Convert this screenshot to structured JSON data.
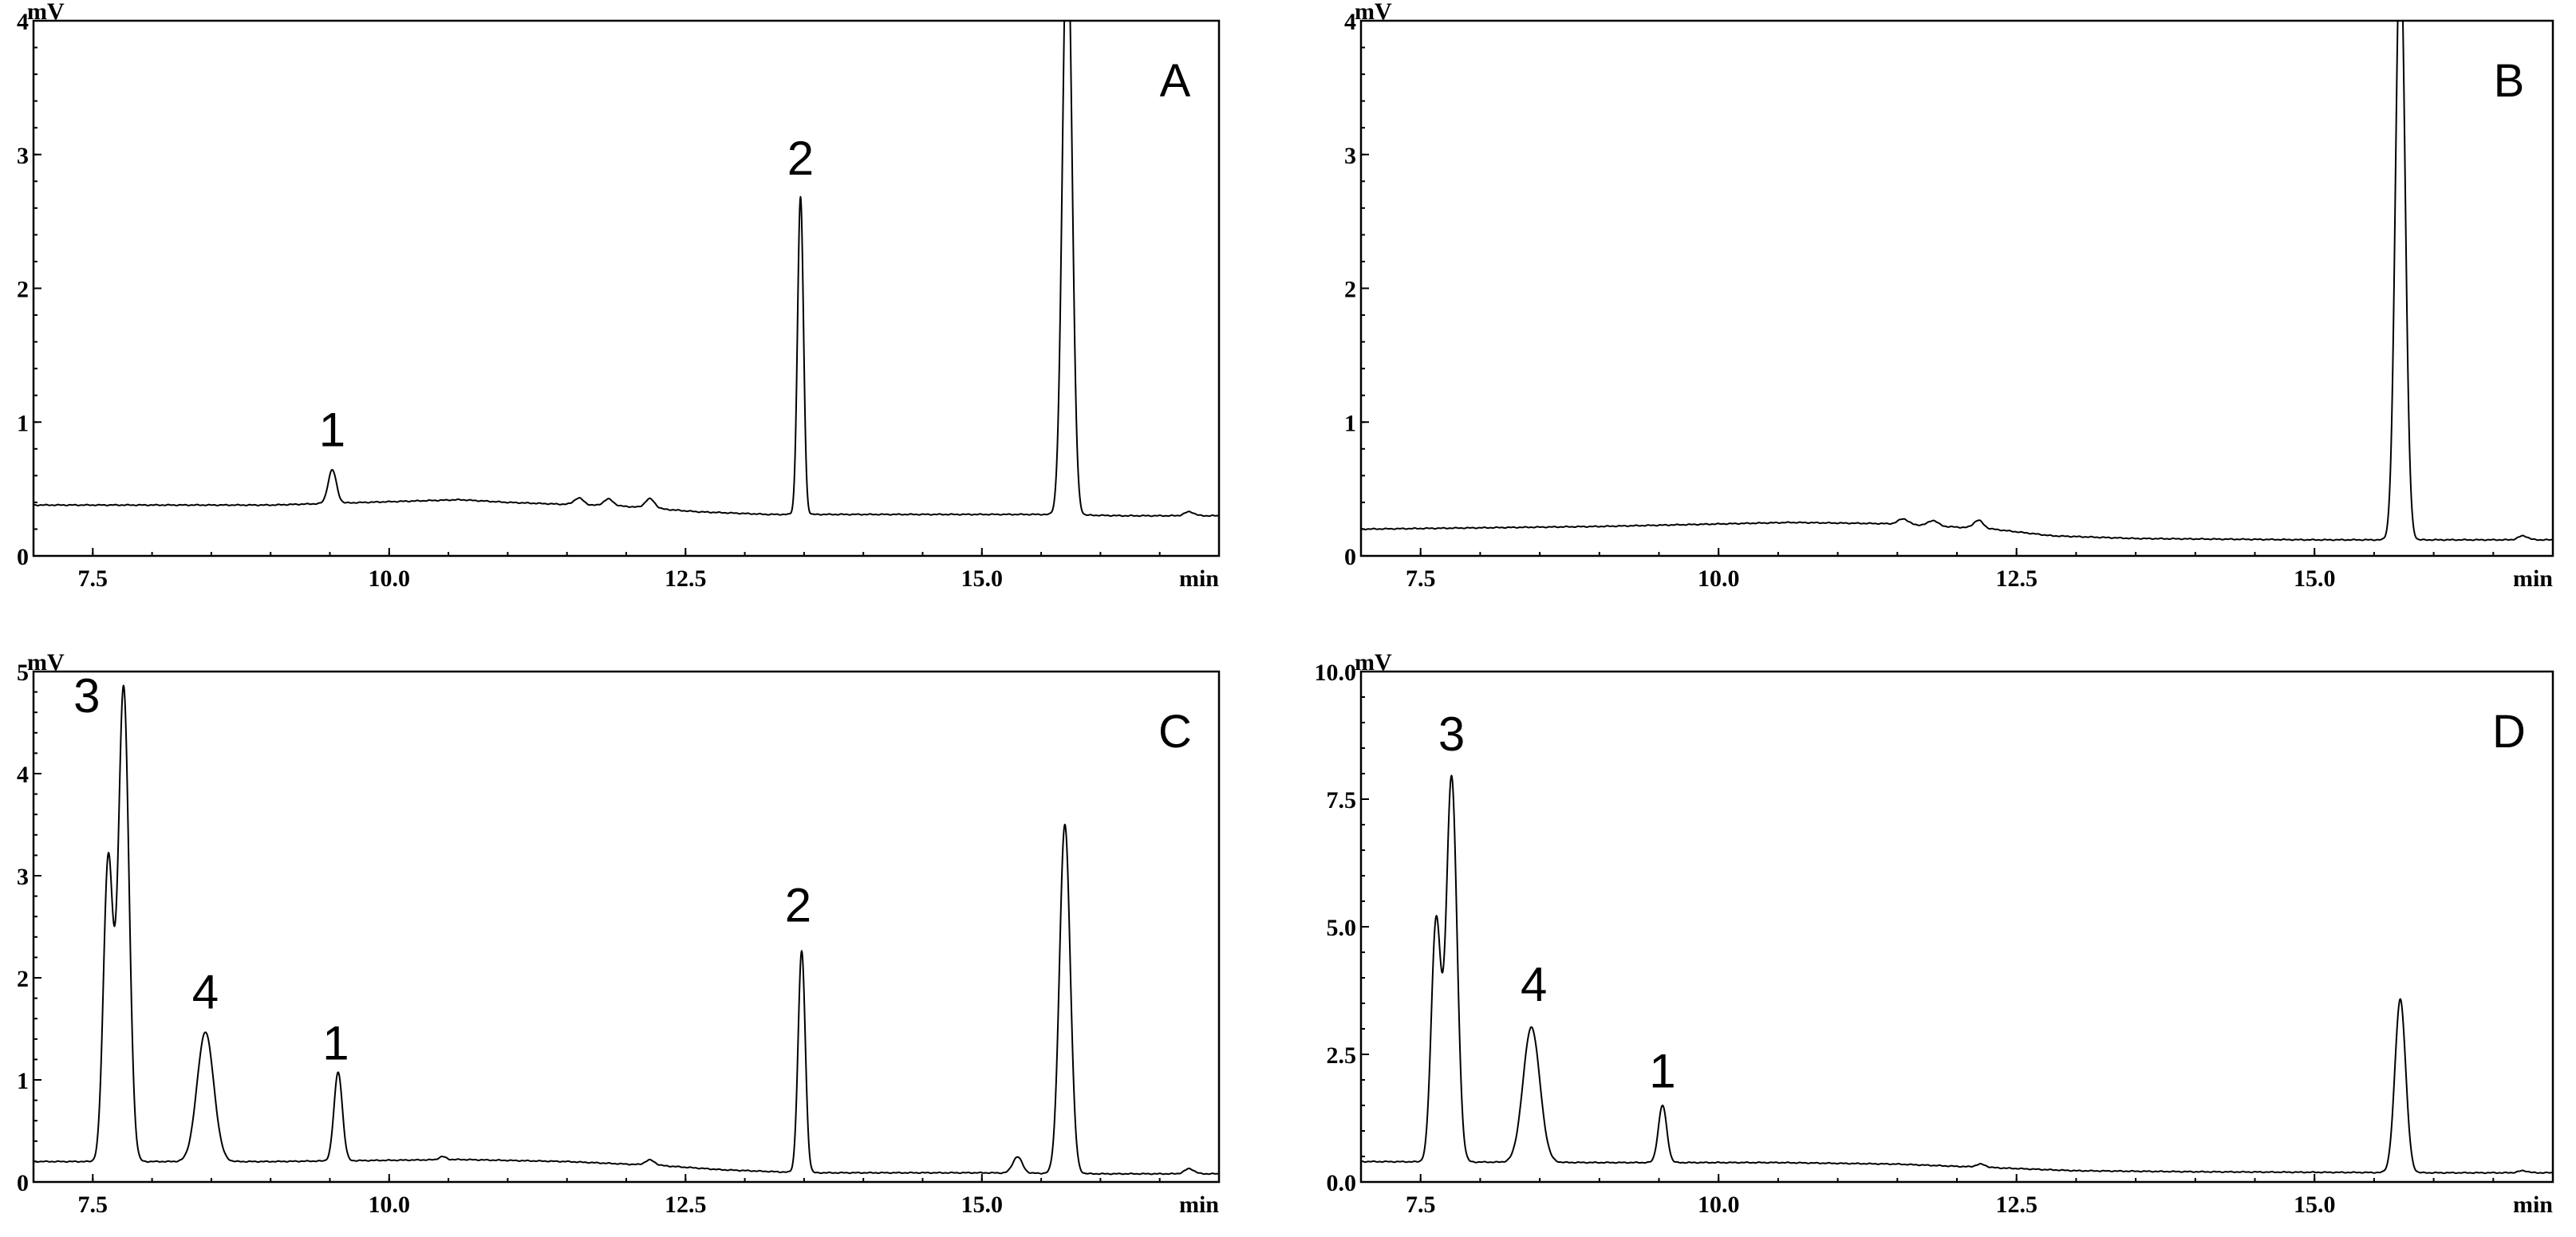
{
  "chart_data": [
    {
      "type": "line",
      "panel_letter": "A",
      "y_unit": "mV",
      "x_unit": "min",
      "xlim": [
        7.0,
        17.0
      ],
      "ylim": [
        0,
        4
      ],
      "x_ticks": [
        "7.5",
        "10.0",
        "12.5",
        "15.0"
      ],
      "x_tick_values": [
        7.5,
        10.0,
        12.5,
        15.0
      ],
      "y_ticks": [
        "0",
        "1",
        "2",
        "3",
        "4"
      ],
      "y_tick_values": [
        0,
        1,
        2,
        3,
        4
      ],
      "baseline": [
        [
          7.0,
          0.38
        ],
        [
          9.0,
          0.38
        ],
        [
          10.6,
          0.42
        ],
        [
          11.0,
          0.4
        ],
        [
          12.0,
          0.37
        ],
        [
          12.6,
          0.33
        ],
        [
          13.2,
          0.31
        ],
        [
          14.0,
          0.31
        ],
        [
          15.5,
          0.31
        ],
        [
          16.2,
          0.3
        ],
        [
          17.0,
          0.3
        ]
      ],
      "peaks": [
        {
          "x": 9.52,
          "h": 0.25,
          "w": 0.035
        },
        {
          "x": 11.6,
          "h": 0.05,
          "w": 0.04
        },
        {
          "x": 11.85,
          "h": 0.05,
          "w": 0.04
        },
        {
          "x": 12.2,
          "h": 0.07,
          "w": 0.04
        },
        {
          "x": 13.47,
          "h": 2.37,
          "w": 0.025
        },
        {
          "x": 15.72,
          "h": 4.5,
          "w": 0.04
        },
        {
          "x": 16.75,
          "h": 0.03,
          "w": 0.04
        }
      ],
      "peak_labels": [
        {
          "text": "1",
          "x": 9.52,
          "y": 0.82
        },
        {
          "text": "2",
          "x": 13.47,
          "y": 2.85
        }
      ]
    },
    {
      "type": "line",
      "panel_letter": "B",
      "y_unit": "mV",
      "x_unit": "min",
      "xlim": [
        7.0,
        17.0
      ],
      "ylim": [
        0,
        4
      ],
      "x_ticks": [
        "7.5",
        "10.0",
        "12.5",
        "15.0"
      ],
      "x_tick_values": [
        7.5,
        10.0,
        12.5,
        15.0
      ],
      "y_ticks": [
        "0",
        "1",
        "2",
        "3",
        "4"
      ],
      "y_tick_values": [
        0,
        1,
        2,
        3,
        4
      ],
      "baseline": [
        [
          7.0,
          0.2
        ],
        [
          9.0,
          0.22
        ],
        [
          10.6,
          0.25
        ],
        [
          11.5,
          0.24
        ],
        [
          12.3,
          0.2
        ],
        [
          12.8,
          0.15
        ],
        [
          13.5,
          0.13
        ],
        [
          15.0,
          0.12
        ],
        [
          16.0,
          0.12
        ],
        [
          17.0,
          0.12
        ]
      ],
      "peaks": [
        {
          "x": 11.55,
          "h": 0.04,
          "w": 0.04
        },
        {
          "x": 11.8,
          "h": 0.04,
          "w": 0.04
        },
        {
          "x": 12.18,
          "h": 0.06,
          "w": 0.04
        },
        {
          "x": 15.72,
          "h": 4.5,
          "w": 0.04
        },
        {
          "x": 16.75,
          "h": 0.03,
          "w": 0.04
        }
      ],
      "peak_labels": []
    },
    {
      "type": "line",
      "panel_letter": "C",
      "y_unit": "mV",
      "x_unit": "min",
      "xlim": [
        7.0,
        17.0
      ],
      "ylim": [
        0,
        5
      ],
      "x_ticks": [
        "7.5",
        "10.0",
        "12.5",
        "15.0"
      ],
      "x_tick_values": [
        7.5,
        10.0,
        12.5,
        15.0
      ],
      "y_ticks": [
        "0",
        "1",
        "2",
        "3",
        "4",
        "5"
      ],
      "y_tick_values": [
        0,
        1,
        2,
        3,
        4,
        5
      ],
      "baseline": [
        [
          7.0,
          0.2
        ],
        [
          9.0,
          0.2
        ],
        [
          10.6,
          0.22
        ],
        [
          11.5,
          0.2
        ],
        [
          12.3,
          0.16
        ],
        [
          12.8,
          0.12
        ],
        [
          13.5,
          0.09
        ],
        [
          15.0,
          0.09
        ],
        [
          16.0,
          0.08
        ],
        [
          17.0,
          0.08
        ]
      ],
      "peaks": [
        {
          "x": 7.63,
          "h": 2.95,
          "w": 0.04
        },
        {
          "x": 7.76,
          "h": 4.65,
          "w": 0.045
        },
        {
          "x": 8.45,
          "h": 1.27,
          "w": 0.07
        },
        {
          "x": 9.57,
          "h": 0.87,
          "w": 0.035
        },
        {
          "x": 10.45,
          "h": 0.03,
          "w": 0.03
        },
        {
          "x": 12.2,
          "h": 0.05,
          "w": 0.04
        },
        {
          "x": 13.48,
          "h": 2.17,
          "w": 0.03
        },
        {
          "x": 15.3,
          "h": 0.16,
          "w": 0.04
        },
        {
          "x": 15.7,
          "h": 3.42,
          "w": 0.045
        },
        {
          "x": 16.75,
          "h": 0.05,
          "w": 0.04
        }
      ],
      "peak_labels": [
        {
          "text": "3",
          "x": 7.45,
          "y": 4.6
        },
        {
          "text": "4",
          "x": 8.45,
          "y": 1.7
        },
        {
          "text": "1",
          "x": 9.55,
          "y": 1.2
        },
        {
          "text": "2",
          "x": 13.45,
          "y": 2.55
        }
      ]
    },
    {
      "type": "line",
      "panel_letter": "D",
      "y_unit": "mV",
      "x_unit": "min",
      "xlim": [
        7.0,
        17.0
      ],
      "ylim": [
        0,
        10
      ],
      "x_ticks": [
        "7.5",
        "10.0",
        "12.5",
        "15.0"
      ],
      "x_tick_values": [
        7.5,
        10.0,
        12.5,
        15.0
      ],
      "y_ticks": [
        "0.0",
        "2.5",
        "5.0",
        "7.5",
        "10.0"
      ],
      "y_tick_values": [
        0,
        2.5,
        5.0,
        7.5,
        10.0
      ],
      "baseline": [
        [
          7.0,
          0.4
        ],
        [
          9.0,
          0.38
        ],
        [
          10.5,
          0.38
        ],
        [
          11.5,
          0.35
        ],
        [
          12.3,
          0.28
        ],
        [
          13.0,
          0.22
        ],
        [
          14.0,
          0.2
        ],
        [
          16.0,
          0.18
        ],
        [
          17.0,
          0.18
        ]
      ],
      "peaks": [
        {
          "x": 7.63,
          "h": 4.7,
          "w": 0.04
        },
        {
          "x": 7.76,
          "h": 7.55,
          "w": 0.045
        },
        {
          "x": 8.43,
          "h": 2.65,
          "w": 0.07
        },
        {
          "x": 9.53,
          "h": 1.12,
          "w": 0.035
        },
        {
          "x": 12.2,
          "h": 0.06,
          "w": 0.04
        },
        {
          "x": 15.72,
          "h": 3.4,
          "w": 0.045
        },
        {
          "x": 16.75,
          "h": 0.04,
          "w": 0.04
        }
      ],
      "peak_labels": [
        {
          "text": "3",
          "x": 7.76,
          "y": 8.45
        },
        {
          "text": "4",
          "x": 8.45,
          "y": 3.55
        },
        {
          "text": "1",
          "x": 9.53,
          "y": 1.85
        }
      ]
    }
  ]
}
